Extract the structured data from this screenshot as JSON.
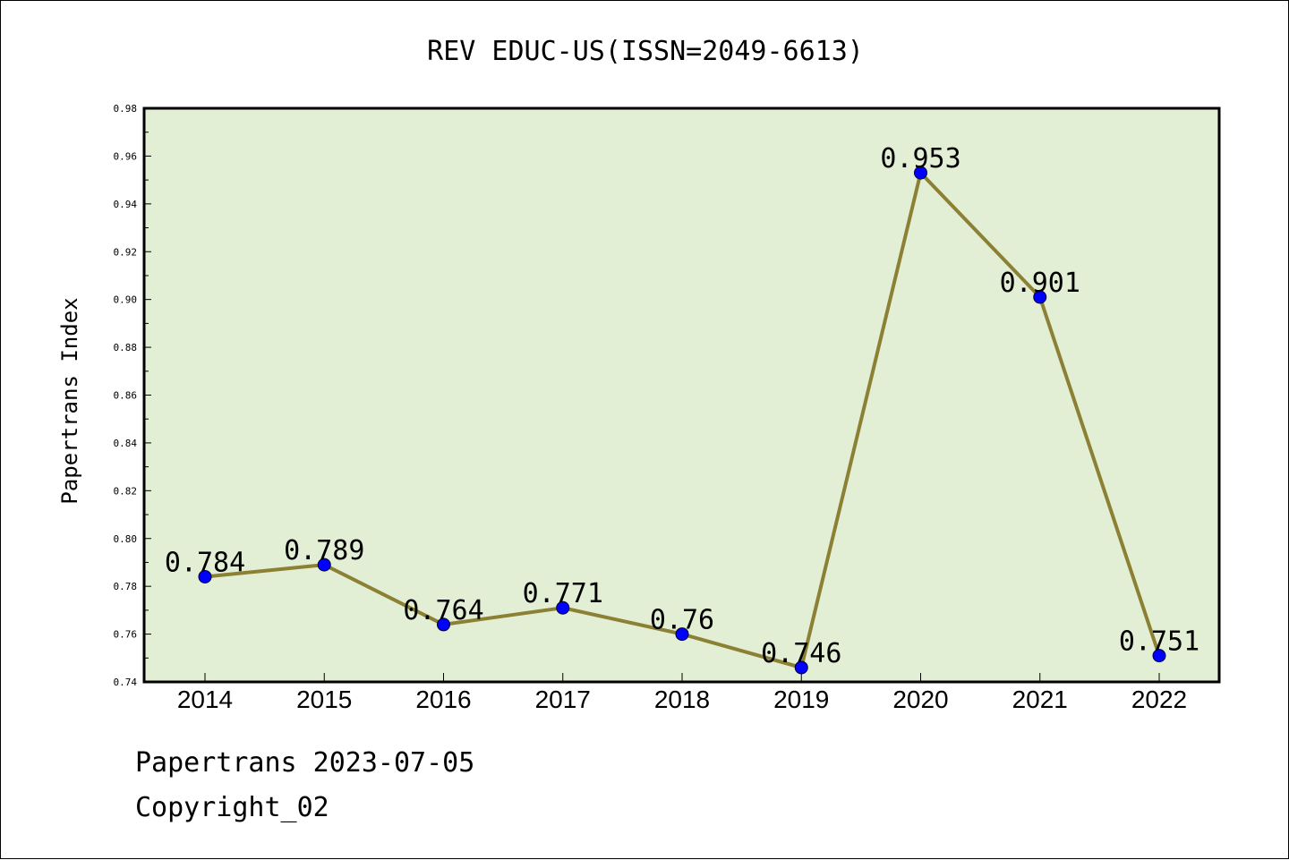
{
  "chart_data": {
    "type": "line",
    "title": "REV EDUC-US(ISSN=2049-6613)",
    "xlabel": "",
    "ylabel": "Papertrans Index",
    "categories": [
      "2014",
      "2015",
      "2016",
      "2017",
      "2018",
      "2019",
      "2020",
      "2021",
      "2022"
    ],
    "values": [
      0.784,
      0.789,
      0.764,
      0.771,
      0.76,
      0.746,
      0.953,
      0.901,
      0.751
    ],
    "data_labels": [
      "0.784",
      "0.789",
      "0.764",
      "0.771",
      "0.76",
      "0.746",
      "0.953",
      "0.901",
      "0.751"
    ],
    "ylim": [
      0.74,
      0.98
    ],
    "yticks": [
      0.74,
      0.76,
      0.78,
      0.8,
      0.82,
      0.84,
      0.86,
      0.88,
      0.9,
      0.92,
      0.94,
      0.96,
      0.98
    ],
    "ytick_labels": [
      "0.74",
      "0.76",
      "0.78",
      "0.80",
      "0.82",
      "0.84",
      "0.86",
      "0.88",
      "0.90",
      "0.92",
      "0.94",
      "0.96",
      "0.98"
    ],
    "grid": false,
    "legend": "none",
    "colors": {
      "plot_background": "#e2efd4",
      "line": "#8b8034",
      "marker": "#0000ff",
      "axes": "#000000"
    }
  },
  "footer": {
    "date_line": "Papertrans 2023-07-05",
    "copyright": "Copyright_02"
  }
}
